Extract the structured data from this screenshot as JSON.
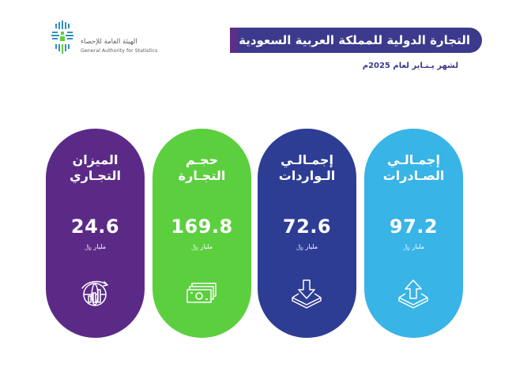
{
  "logo": {
    "arabic_text": "الهيئة العامة للإحصاء",
    "english_text": "General Authority for Statistics",
    "colors": {
      "mark": "#2f8fbd",
      "accent": "#5ccf3f"
    }
  },
  "header": {
    "title": "التجارة الدولية للمملكة العربية السعودية",
    "subtitle": "لشهر يـنـاير لعام 2025م",
    "colors": {
      "banner": "#3b3a8c",
      "banner_tab": "#5e2d88"
    }
  },
  "cards": [
    {
      "id": "trade-balance",
      "label_line1": "الميزان",
      "label_line2": "التجـاري",
      "value": "24.6",
      "unit": "مليار ﷼",
      "icon": "globe-growth-chart-icon",
      "color": "#5b2a86"
    },
    {
      "id": "trade-volume",
      "label_line1": "حجـم",
      "label_line2": "التجـارة",
      "value": "169.8",
      "unit": "مليار ﷼",
      "icon": "banknotes-icon",
      "color": "#5ccf3f"
    },
    {
      "id": "total-imports",
      "label_line1": "إجمـالـي",
      "label_line2": "الـواردات",
      "value": "72.6",
      "unit": "مليار ﷼",
      "icon": "import-tray-down-arrow-icon",
      "color": "#2e3d94"
    },
    {
      "id": "total-exports",
      "label_line1": "إجمـالـي",
      "label_line2": "الصـادرات",
      "value": "97.2",
      "unit": "مليار ﷼",
      "icon": "export-tray-up-arrow-icon",
      "color": "#38b4e6"
    }
  ]
}
